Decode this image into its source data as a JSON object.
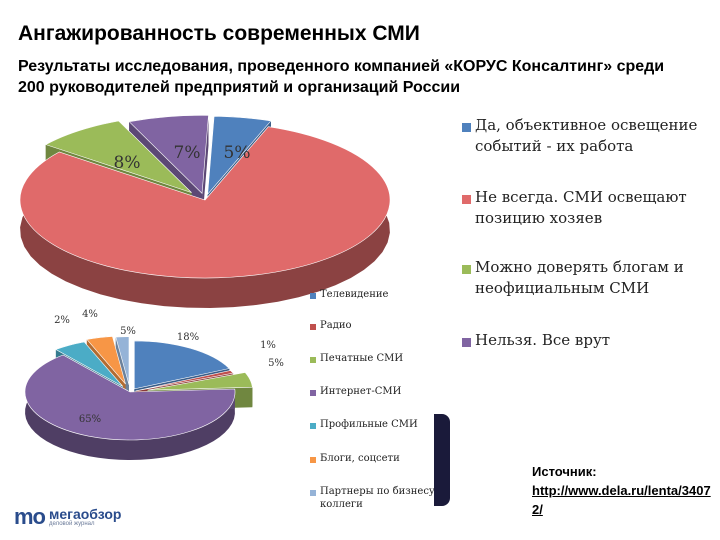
{
  "header": {
    "title": "Ангажированность современных СМИ",
    "subtitle": "Результаты исследования, проведенного компанией «КОРУС Консалтинг» среди 200 руководителей предприятий и организаций России"
  },
  "chart_data": [
    {
      "type": "pie",
      "title": "",
      "slices": [
        {
          "label": "Да, объективное освещение событий - их работа",
          "value": 5,
          "value_label": "5%",
          "color": "#4f81bd"
        },
        {
          "label": "Не всегда. СМИ освещают позицию хозяев",
          "value": 80,
          "value_label": "",
          "color": "#e06a6a"
        },
        {
          "label": "Можно доверять блогам и неофициальным СМИ",
          "value": 8,
          "value_label": "8%",
          "color": "#9bbb59"
        },
        {
          "label": "Нельзя. Все врут",
          "value": 7,
          "value_label": "7%",
          "color": "#8064a2"
        }
      ],
      "legend": [
        "Да, объективное освещение событий - их работа",
        "Не всегда. СМИ освещают позицию хозяев",
        "Можно доверять блогам и неофициальным СМИ",
        "Нельзя. Все врут"
      ],
      "legend_position": "right"
    },
    {
      "type": "pie",
      "title": "",
      "slices": [
        {
          "label": "Телевидение",
          "value": 18,
          "value_label": "18%",
          "color": "#4f81bd"
        },
        {
          "label": "Радио",
          "value": 1,
          "value_label": "1%",
          "color": "#c0504d"
        },
        {
          "label": "Печатные СМИ",
          "value": 5,
          "value_label": "5%",
          "color": "#9bbb59"
        },
        {
          "label": "Интернет-СМИ",
          "value": 65,
          "value_label": "65%",
          "color": "#8064a2"
        },
        {
          "label": "Профильные СМИ",
          "value": 5,
          "value_label": "5%",
          "color": "#4bacc6"
        },
        {
          "label": "Блоги, соцсети",
          "value": 4,
          "value_label": "4%",
          "color": "#f79646"
        },
        {
          "label": "Партнеры по бизнесу, коллеги",
          "value": 2,
          "value_label": "2%",
          "color": "#95b3d7"
        }
      ],
      "legend": [
        "Телевидение",
        "Радио",
        "Печатные СМИ",
        "Интернет-СМИ",
        "Профильные СМИ",
        "Блоги, соцсети",
        "Партнеры по бизнесу, коллеги"
      ],
      "legend_position": "right"
    }
  ],
  "source": {
    "title": "Источник:",
    "link": "http://www.dela.ru/lenta/34072/"
  },
  "logo": {
    "mark": "mo",
    "name": "мегаобзор",
    "tagline": "деловой журнал"
  }
}
